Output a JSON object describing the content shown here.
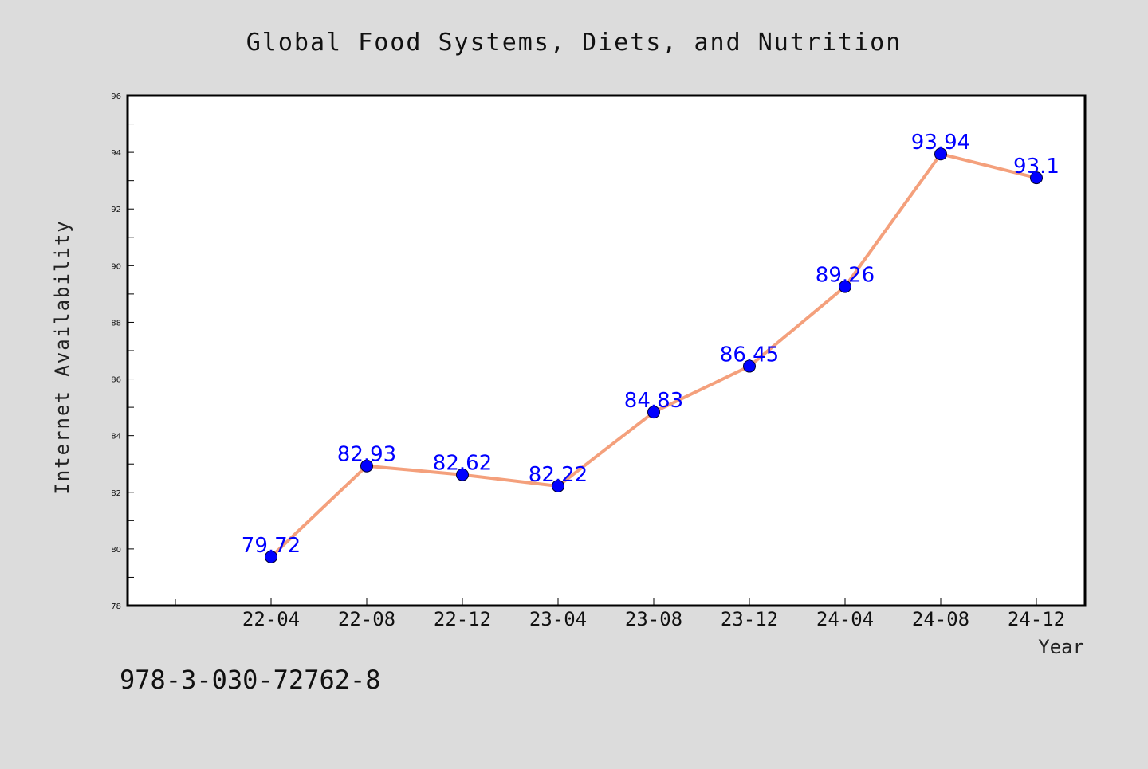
{
  "footnote": "978-3-030-72762-8",
  "colors": {
    "background": "#dcdcdc",
    "plot_bg": "#ffffff",
    "line": "#f4a07c",
    "marker": "#0000ff",
    "data_label": "#0000ff"
  },
  "chart_data": {
    "type": "line",
    "title": "Global Food Systems, Diets, and Nutrition",
    "xlabel": "Year",
    "ylabel": "Internet Availability",
    "categories": [
      "22-04",
      "22-08",
      "22-12",
      "23-04",
      "23-08",
      "23-12",
      "24-04",
      "24-08",
      "24-12"
    ],
    "series": [
      {
        "values": [
          79.72,
          82.93,
          82.62,
          82.22,
          84.83,
          86.45,
          89.26,
          93.94,
          93.1
        ]
      }
    ],
    "data_labels": [
      "79.72",
      "82.93",
      "82.62",
      "82.22",
      "84.83",
      "86.45",
      "89.26",
      "93.94",
      "93.1"
    ],
    "ylim": [
      78,
      96
    ],
    "yticks": [
      78,
      80,
      82,
      84,
      86,
      88,
      90,
      92,
      94,
      96
    ],
    "grid": false,
    "legend": "none"
  }
}
